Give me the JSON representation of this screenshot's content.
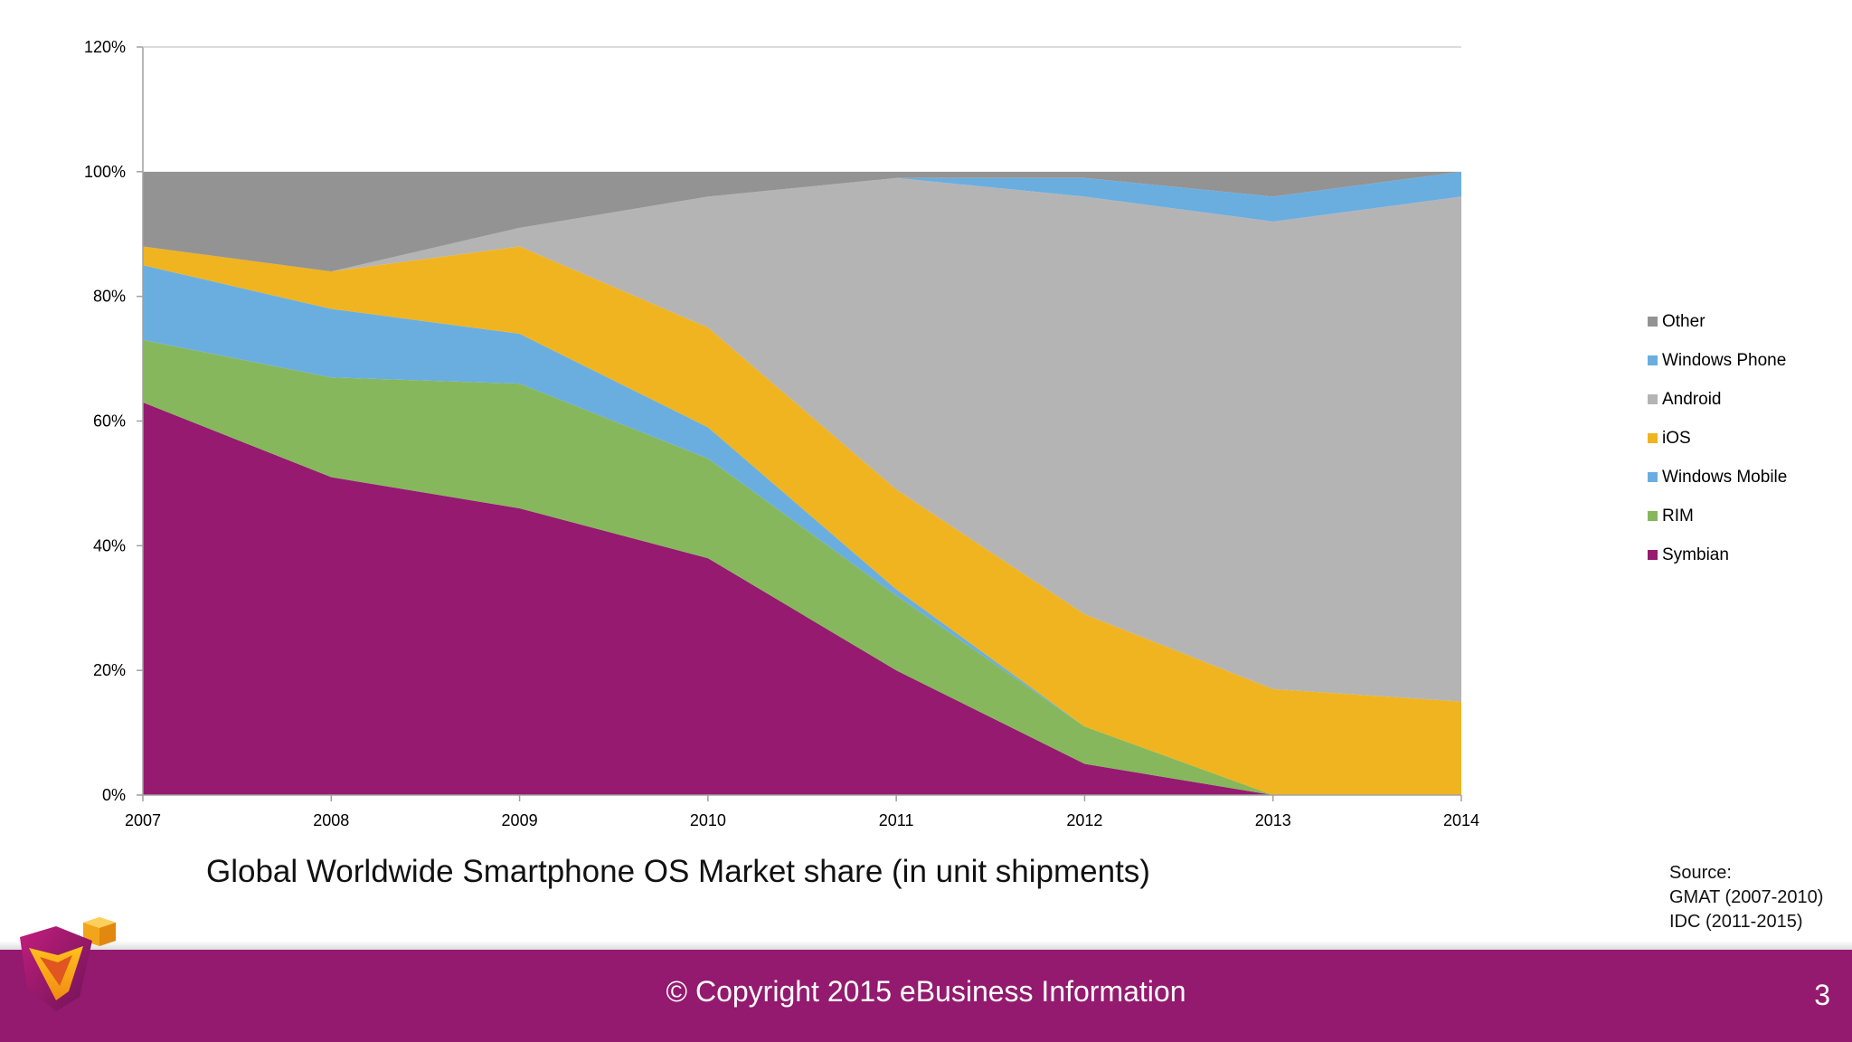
{
  "chart_data": {
    "type": "area",
    "stacked": true,
    "x": [
      "2007",
      "2008",
      "2009",
      "2010",
      "2011",
      "2012",
      "2013",
      "2014"
    ],
    "ylim": [
      0,
      120
    ],
    "yticks": [
      0,
      20,
      40,
      60,
      80,
      100,
      120
    ],
    "ytick_suffix": "%",
    "grid": false,
    "legend_position": "right",
    "title": "",
    "xlabel": "",
    "ylabel": "",
    "series": [
      {
        "name": "Symbian",
        "color": "#951a70",
        "values": [
          63,
          51,
          46,
          38,
          20,
          5,
          0,
          0
        ]
      },
      {
        "name": "RIM",
        "color": "#86b75c",
        "values": [
          10,
          16,
          20,
          16,
          12,
          6,
          0,
          0
        ]
      },
      {
        "name": "Windows Mobile",
        "color": "#6aaee0",
        "values": [
          12,
          11,
          8,
          5,
          1,
          0,
          0,
          0
        ]
      },
      {
        "name": "iOS",
        "color": "#efb420",
        "values": [
          3,
          6,
          14,
          16,
          16,
          18,
          17,
          15
        ]
      },
      {
        "name": "Android",
        "color": "#b5b4b5",
        "values": [
          0,
          0,
          3,
          21,
          50,
          67,
          75,
          81
        ]
      },
      {
        "name": "Windows Phone",
        "color": "#6aaee0",
        "values": [
          0,
          0,
          0,
          0,
          0,
          3,
          4,
          4
        ]
      },
      {
        "name": "Other",
        "color": "#939393",
        "values": [
          12,
          16,
          9,
          4,
          1,
          1,
          4,
          0
        ]
      }
    ],
    "legend_order": [
      "Other",
      "Windows Phone",
      "Android",
      "iOS",
      "Windows Mobile",
      "RIM",
      "Symbian"
    ]
  },
  "caption": "Global Worldwide Smartphone OS Market share (in unit shipments)",
  "source_lines": [
    "Source:",
    "GMAT (2007-2010)",
    "IDC (2011-2015)"
  ],
  "footer": {
    "copyright": "© Copyright 2015 eBusiness Information",
    "page_number": "3",
    "bar_color": "#931a6e"
  },
  "logo": {
    "icon": "ebusiness-cube-logo-icon"
  }
}
